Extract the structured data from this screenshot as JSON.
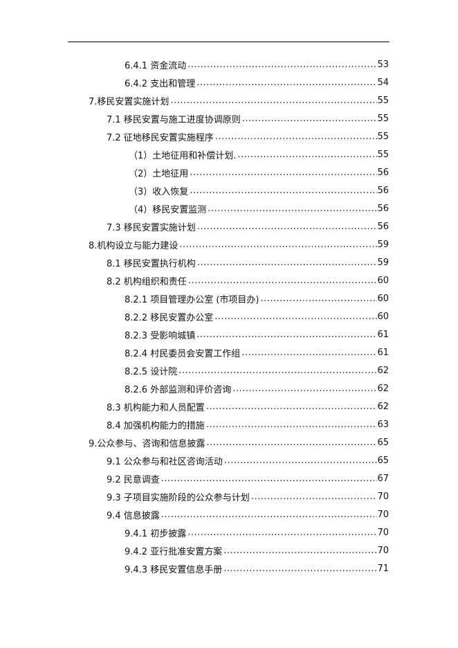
{
  "toc": [
    {
      "label": "6.4.1  资金流动 ",
      "page": "53",
      "level": 3
    },
    {
      "label": "6.4.2  支出和管理 ",
      "page": "54",
      "level": 3
    },
    {
      "label": "7.移民安置实施计划",
      "page": "55",
      "level": 1
    },
    {
      "label": "7.1  移民安置与施工进度协调原则 ",
      "page": "55",
      "level": 2
    },
    {
      "label": "7.2  征地移民安置实施程序",
      "page": "55",
      "level": 2
    },
    {
      "label": "（1）土地征用和补偿计划.",
      "page": "55",
      "level": 4
    },
    {
      "label": "（2）土地征用",
      "page": "56",
      "level": 4
    },
    {
      "label": "（3）收入恢复",
      "page": "56",
      "level": 4
    },
    {
      "label": "（4）移民安置监测 ",
      "page": "56",
      "level": 4
    },
    {
      "label": "7.3  移民安置实施计划 ",
      "page": "56",
      "level": 2
    },
    {
      "label": "8.机构设立与能力建设",
      "page": "59",
      "level": 1
    },
    {
      "label": "8.1 移民安置执行机构",
      "page": "59",
      "level": 2
    },
    {
      "label": "8.2 机构组织和责任 ",
      "page": "60",
      "level": 2
    },
    {
      "label": "8.2.1  项目管理办公室 (市项目办) ",
      "page": "60",
      "level": 3
    },
    {
      "label": "8.2.2  移民安置办公室   ",
      "page": "60",
      "level": 3
    },
    {
      "label": "8.2.3  受影响城镇 ",
      "page": "61",
      "level": 3
    },
    {
      "label": "8.2.4  村民委员会安置工作组 ",
      "page": "61",
      "level": 3
    },
    {
      "label": "8.2.5 设计院 ",
      "page": "62",
      "level": 3
    },
    {
      "label": "8.2.6  外部监测和评价咨询",
      "page": "62",
      "level": 3
    },
    {
      "label": "8.3 机构能力和人员配置",
      "page": "62",
      "level": 2
    },
    {
      "label": "8.4 加强机构能力的措施",
      "page": "63",
      "level": 2
    },
    {
      "label": "9.公众参与、咨询和信息披露 ",
      "page": "65",
      "level": 1
    },
    {
      "label": "9.1 公众参与和社区咨询活动 ",
      "page": "65",
      "level": 2
    },
    {
      "label": "9.2  民意调查",
      "page": "67",
      "level": 2
    },
    {
      "label": "9.3 子项目实施阶段的公众参与计划",
      "page": "70",
      "level": 2
    },
    {
      "label": "9.4  信息披露",
      "page": "70",
      "level": 2
    },
    {
      "label": "9.4.1  初步披露 ",
      "page": "70",
      "level": 3
    },
    {
      "label": "9.4.2  亚行批准安置方案",
      "page": "70",
      "level": 3
    },
    {
      "label": "9.4.3  移民安置信息手册",
      "page": "71",
      "level": 3
    }
  ]
}
